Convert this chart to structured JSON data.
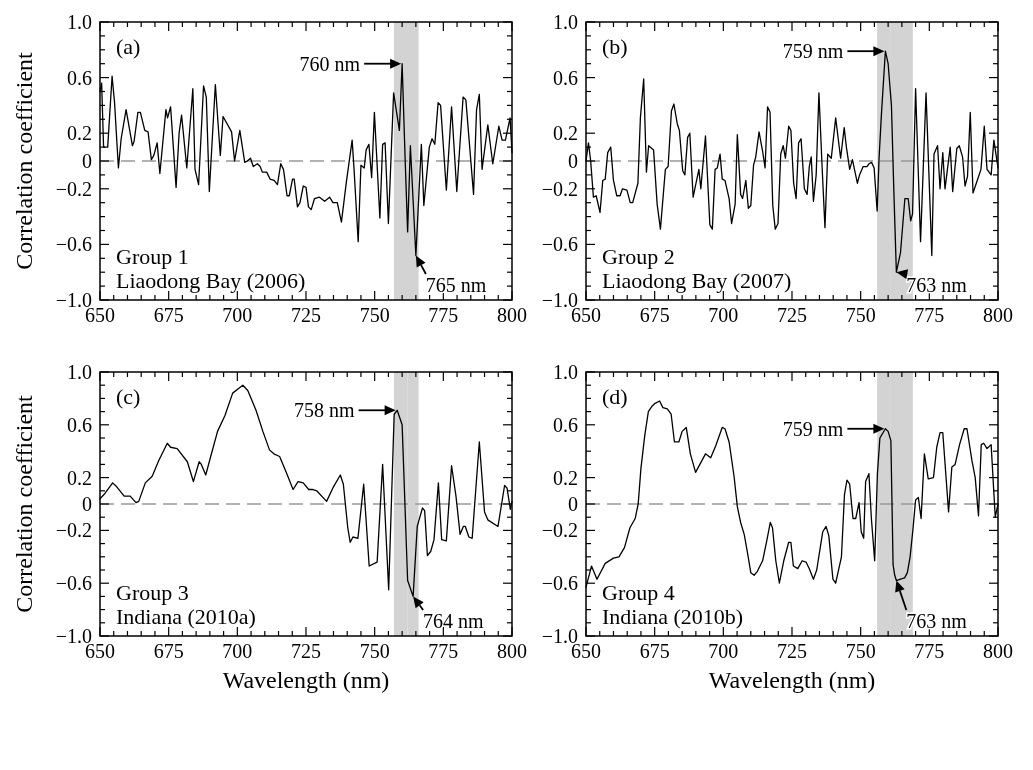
{
  "chart_data": [
    {
      "type": "line",
      "ylabel": "Correlation coefficient",
      "xlim": [
        650,
        800
      ],
      "ylim": [
        -1,
        1
      ],
      "xticks": [
        650,
        {
          "value": 655,
          "label": null
        },
        {
          "value": 660,
          "label": null
        },
        {
          "value": 665,
          "label": null
        },
        {
          "value": 670,
          "label": null
        },
        675,
        {
          "value": 680,
          "label": null
        },
        {
          "value": 685,
          "label": null
        },
        {
          "value": 690,
          "label": null
        },
        {
          "value": 695,
          "label": null
        },
        700,
        {
          "value": 705,
          "label": null
        },
        {
          "value": 710,
          "label": null
        },
        {
          "value": 715,
          "label": null
        },
        {
          "value": 720,
          "label": null
        },
        725,
        {
          "value": 730,
          "label": null
        },
        {
          "value": 735,
          "label": null
        },
        {
          "value": 740,
          "label": null
        },
        {
          "value": 745,
          "label": null
        },
        750,
        {
          "value": 755,
          "label": null
        },
        {
          "value": 760,
          "label": null
        },
        {
          "value": 765,
          "label": null
        },
        {
          "value": 770,
          "label": null
        },
        775,
        {
          "value": 780,
          "label": null
        },
        {
          "value": 785,
          "label": null
        },
        {
          "value": 790,
          "label": null
        },
        {
          "value": 795,
          "label": null
        },
        800
      ],
      "yticks": [
        {
          "value": 1,
          "label": "1.0"
        },
        {
          "value": 0.9,
          "label": null
        },
        {
          "value": 0.8,
          "label": null
        },
        {
          "value": 0.7,
          "label": null
        },
        0.6,
        {
          "value": 0.5,
          "label": null
        },
        {
          "value": 0.4,
          "label": null
        },
        {
          "value": 0.3,
          "label": null
        },
        0.2,
        {
          "value": 0.1,
          "label": null
        },
        0,
        {
          "value": -0.1,
          "label": null
        },
        {
          "value": -0.2,
          "label": "−0.2"
        },
        {
          "value": -0.3,
          "label": null
        },
        {
          "value": -0.4,
          "label": null
        },
        {
          "value": -0.5,
          "label": null
        },
        {
          "value": -0.6,
          "label": "−0.6"
        },
        {
          "value": -0.7,
          "label": null
        },
        {
          "value": -0.8,
          "label": null
        },
        {
          "value": -0.9,
          "label": null
        },
        {
          "value": -1,
          "label": "−1.0"
        }
      ],
      "ref_lines": [
        {
          "axis": "y",
          "value": 0,
          "color": "#999999",
          "line_style": "dashed"
        }
      ],
      "bands": [
        {
          "axis": "x",
          "from": 757,
          "to": 762,
          "color": "#d3d3d3"
        },
        {
          "axis": "x",
          "from": 761,
          "to": 766,
          "color": "#d3d3d3"
        }
      ],
      "annotations": [
        "(a)",
        "Group 1",
        "Liaodong Bay (2006)",
        {
          "text": "760 nm",
          "x": 760,
          "y": 0.7
        },
        {
          "text": "765 nm",
          "x": 765,
          "y": -0.68
        }
      ],
      "series": [
        {
          "color": "#000000",
          "x": [
            650,
            650.6,
            651.3,
            652.8,
            654.4,
            655.3,
            656.7,
            657.7,
            659.5,
            661.8,
            662.4,
            663.8,
            664.7,
            666.3,
            667.5,
            668.7,
            669.6,
            670.8,
            671.8,
            674,
            674.6,
            675.7,
            677.7,
            678.8,
            679.7,
            681.6,
            683.8,
            684.6,
            685.9,
            687.7,
            688.7,
            689.8,
            692,
            693.8,
            694.8,
            697.9,
            699,
            700.9,
            702.7,
            703.6,
            704.8,
            705.8,
            707.3,
            708.3,
            709.1,
            710.7,
            711.9,
            713.4,
            714.6,
            715.8,
            716.8,
            718.1,
            718.9,
            720.1,
            720.7,
            721.9,
            722.8,
            724,
            725,
            725.9,
            726.9,
            728.1,
            729.9,
            731.8,
            733.6,
            734.8,
            736.4,
            737.9,
            739.7,
            741.8,
            742.5,
            744,
            745,
            746.2,
            746.9,
            747.9,
            748.9,
            749.9,
            751.9,
            752.9,
            753.8,
            755,
            756.9,
            759,
            760,
            761.1,
            762,
            763,
            765,
            767,
            767.9,
            769.9,
            770.9,
            771.9,
            773.1,
            774,
            776.1,
            778,
            779.9,
            782.2,
            783.2,
            786,
            787.1,
            788.1,
            789.1,
            791.2,
            793,
            795.2,
            796.4,
            797.6,
            799.3,
            800
          ],
          "values": [
            0.5,
            0.56,
            0.1,
            0.1,
            0.61,
            0.42,
            -0.05,
            0.16,
            0.37,
            0.11,
            0.14,
            0.35,
            0.35,
            0.22,
            0.21,
            0.01,
            0.04,
            0.13,
            -0.09,
            0.37,
            0.31,
            0.39,
            -0.19,
            0.2,
            0.33,
            -0.05,
            0.52,
            -0.06,
            -0.17,
            0.54,
            0.46,
            -0.22,
            0.55,
            0.04,
            0.32,
            0.21,
            0,
            0.22,
            -0.01,
            0,
            0.02,
            -0.04,
            -0.02,
            -0.04,
            -0.08,
            -0.08,
            -0.13,
            -0.14,
            -0.17,
            -0.02,
            -0.06,
            -0.25,
            -0.25,
            -0.13,
            -0.13,
            -0.33,
            -0.3,
            -0.18,
            -0.19,
            -0.33,
            -0.35,
            -0.27,
            -0.26,
            -0.29,
            -0.26,
            -0.3,
            -0.3,
            -0.44,
            -0.15,
            0.15,
            -0.06,
            -0.58,
            -0.03,
            -0.05,
            0.08,
            0.12,
            -0.12,
            0.35,
            -0.41,
            0.12,
            0.13,
            -0.45,
            0.49,
            0.22,
            0.7,
            0.01,
            -0.51,
            0.11,
            -0.68,
            0.12,
            -0.32,
            0.1,
            0.16,
            0.12,
            0.42,
            0.4,
            -0.21,
            0.39,
            -0.22,
            0.46,
            0.44,
            -0.24,
            0.37,
            0.48,
            -0.06,
            0.26,
            -0.02,
            0.25,
            0.15,
            0.15,
            0.31,
            0.06
          ]
        }
      ]
    },
    {
      "type": "line",
      "xlim": [
        650,
        800
      ],
      "ylim": [
        -1,
        1
      ],
      "xticks": [
        650,
        {
          "value": 655,
          "label": null
        },
        {
          "value": 660,
          "label": null
        },
        {
          "value": 665,
          "label": null
        },
        {
          "value": 670,
          "label": null
        },
        675,
        {
          "value": 680,
          "label": null
        },
        {
          "value": 685,
          "label": null
        },
        {
          "value": 690,
          "label": null
        },
        {
          "value": 695,
          "label": null
        },
        700,
        {
          "value": 705,
          "label": null
        },
        {
          "value": 710,
          "label": null
        },
        {
          "value": 715,
          "label": null
        },
        {
          "value": 720,
          "label": null
        },
        725,
        {
          "value": 730,
          "label": null
        },
        {
          "value": 735,
          "label": null
        },
        {
          "value": 740,
          "label": null
        },
        {
          "value": 745,
          "label": null
        },
        750,
        {
          "value": 755,
          "label": null
        },
        {
          "value": 760,
          "label": null
        },
        {
          "value": 765,
          "label": null
        },
        {
          "value": 770,
          "label": null
        },
        775,
        {
          "value": 780,
          "label": null
        },
        {
          "value": 785,
          "label": null
        },
        {
          "value": 790,
          "label": null
        },
        {
          "value": 795,
          "label": null
        },
        800
      ],
      "yticks": [
        {
          "value": 1,
          "label": "1.0"
        },
        {
          "value": 0.9,
          "label": null
        },
        {
          "value": 0.8,
          "label": null
        },
        {
          "value": 0.7,
          "label": null
        },
        0.6,
        {
          "value": 0.5,
          "label": null
        },
        {
          "value": 0.4,
          "label": null
        },
        {
          "value": 0.3,
          "label": null
        },
        0.2,
        {
          "value": 0.1,
          "label": null
        },
        0,
        {
          "value": -0.1,
          "label": null
        },
        {
          "value": -0.2,
          "label": "−0.2"
        },
        {
          "value": -0.3,
          "label": null
        },
        {
          "value": -0.4,
          "label": null
        },
        {
          "value": -0.5,
          "label": null
        },
        {
          "value": -0.6,
          "label": "−0.6"
        },
        {
          "value": -0.7,
          "label": null
        },
        {
          "value": -0.8,
          "label": null
        },
        {
          "value": -0.9,
          "label": null
        },
        {
          "value": -1,
          "label": "−1.0"
        }
      ],
      "ref_lines": [
        {
          "axis": "y",
          "value": 0,
          "color": "#999999",
          "line_style": "dashed"
        }
      ],
      "bands": [
        {
          "axis": "x",
          "from": 756,
          "to": 761,
          "color": "#d3d3d3"
        },
        {
          "axis": "x",
          "from": 761,
          "to": 769,
          "color": "#d3d3d3"
        }
      ],
      "annotations": [
        "(b)",
        "Group 2",
        "Liaodong Bay (2007)",
        {
          "text": "759 nm",
          "x": 759,
          "y": 0.79
        },
        {
          "text": "763 nm",
          "x": 763,
          "y": -0.8
        }
      ],
      "series": [
        {
          "color": "#000000",
          "x": [
            650,
            650.9,
            651.7,
            652.7,
            653.7,
            655.1,
            656.1,
            657,
            657.9,
            659,
            660,
            661.2,
            662.4,
            663.3,
            664.9,
            666.1,
            667,
            668.9,
            669.8,
            671,
            672,
            672.8,
            674.6,
            675.9,
            677.1,
            678.9,
            679.9,
            681.1,
            682,
            683.2,
            684,
            685.2,
            686,
            687,
            687.8,
            689,
            691.1,
            691.8,
            693.5,
            695.1,
            696,
            697,
            697.8,
            698.8,
            699.6,
            700.6,
            702.1,
            703,
            704.3,
            705.1,
            706.3,
            707,
            708.2,
            709.1,
            710,
            711,
            711.8,
            713,
            714.3,
            715.2,
            716.1,
            717,
            718,
            718.9,
            719.9,
            720.9,
            721.8,
            722.6,
            723.8,
            724.6,
            725.6,
            726.5,
            727.4,
            728.3,
            729.5,
            730.5,
            731.3,
            732,
            732.8,
            733.8,
            734.8,
            736,
            737,
            738,
            739.3,
            740.9,
            742.7,
            744,
            744.8,
            746,
            747,
            748.8,
            749.6,
            750.9,
            752.3,
            753,
            754,
            754.9,
            756,
            756.7,
            757.6,
            759,
            760,
            761.2,
            762.1,
            763,
            764.5,
            766.1,
            767.3,
            768.2,
            768.9,
            770,
            771.8,
            773.8,
            775.9,
            776.7,
            778,
            778.9,
            779.9,
            780.7,
            782.6,
            783.5,
            785,
            785.9,
            787.1,
            788,
            788.9,
            789.9,
            790.9,
            792.1,
            793.8,
            795,
            796,
            797.5,
            798.5,
            800
          ],
          "values": [
            0,
            0.13,
            0,
            -0.26,
            -0.25,
            -0.37,
            -0.14,
            -0.13,
            0.06,
            0.1,
            -0.14,
            -0.25,
            -0.25,
            -0.2,
            -0.21,
            -0.3,
            -0.3,
            -0.16,
            0.31,
            0.59,
            -0.08,
            0.11,
            0.08,
            -0.31,
            -0.49,
            -0.06,
            -0.04,
            0.36,
            0.41,
            0.27,
            0.22,
            -0.07,
            -0.1,
            0.17,
            0.2,
            -0.26,
            -0.06,
            -0.2,
            0.18,
            -0.46,
            -0.49,
            -0.06,
            -0.05,
            0.05,
            -0.13,
            -0.14,
            -0.27,
            -0.45,
            -0.31,
            0.19,
            -0.24,
            -0.27,
            -0.14,
            -0.34,
            -0.32,
            -0.03,
            0.03,
            0.21,
            0.07,
            -0.05,
            0.39,
            0.35,
            -0.32,
            -0.49,
            -0.45,
            0.05,
            0.11,
            0.02,
            0.25,
            0.22,
            -0.16,
            -0.27,
            0.13,
            0.16,
            -0.2,
            -0.24,
            -0.04,
            0.03,
            -0.29,
            -0.1,
            0.49,
            -0.06,
            -0.48,
            0.05,
            0.02,
            0.31,
            0.02,
            0.24,
            0.1,
            -0.06,
            0.01,
            -0.16,
            -0.1,
            -0.04,
            -0.04,
            -0.02,
            -0.01,
            -0.05,
            -0.36,
            0.02,
            0.35,
            0.79,
            0.7,
            0.4,
            -0.23,
            -0.8,
            -0.66,
            -0.27,
            -0.27,
            -0.43,
            -0.38,
            0.52,
            -0.58,
            0.49,
            -0.68,
            0.05,
            0.11,
            -0.2,
            0.06,
            -0.2,
            0.1,
            -0.22,
            0.09,
            0.11,
            0.03,
            -0.18,
            -0.11,
            0.35,
            -0.23,
            -0.16,
            -0.06,
            0.25,
            -0.06,
            -0.1,
            0.15,
            -0.05
          ]
        }
      ]
    },
    {
      "type": "line",
      "xlabel": "Wavelength (nm)",
      "ylabel": "Correlation coefficient",
      "xlim": [
        650,
        800
      ],
      "ylim": [
        -1,
        1
      ],
      "xticks": [
        650,
        {
          "value": 655,
          "label": null
        },
        {
          "value": 660,
          "label": null
        },
        {
          "value": 665,
          "label": null
        },
        {
          "value": 670,
          "label": null
        },
        675,
        {
          "value": 680,
          "label": null
        },
        {
          "value": 685,
          "label": null
        },
        {
          "value": 690,
          "label": null
        },
        {
          "value": 695,
          "label": null
        },
        700,
        {
          "value": 705,
          "label": null
        },
        {
          "value": 710,
          "label": null
        },
        {
          "value": 715,
          "label": null
        },
        {
          "value": 720,
          "label": null
        },
        725,
        {
          "value": 730,
          "label": null
        },
        {
          "value": 735,
          "label": null
        },
        {
          "value": 740,
          "label": null
        },
        {
          "value": 745,
          "label": null
        },
        750,
        {
          "value": 755,
          "label": null
        },
        {
          "value": 760,
          "label": null
        },
        {
          "value": 765,
          "label": null
        },
        {
          "value": 770,
          "label": null
        },
        775,
        {
          "value": 780,
          "label": null
        },
        {
          "value": 785,
          "label": null
        },
        {
          "value": 790,
          "label": null
        },
        {
          "value": 795,
          "label": null
        },
        800
      ],
      "yticks": [
        {
          "value": 1,
          "label": "1.0"
        },
        {
          "value": 0.9,
          "label": null
        },
        {
          "value": 0.8,
          "label": null
        },
        {
          "value": 0.7,
          "label": null
        },
        0.6,
        {
          "value": 0.5,
          "label": null
        },
        {
          "value": 0.4,
          "label": null
        },
        {
          "value": 0.3,
          "label": null
        },
        0.2,
        {
          "value": 0.1,
          "label": null
        },
        0,
        {
          "value": -0.1,
          "label": null
        },
        {
          "value": -0.2,
          "label": "−0.2"
        },
        {
          "value": -0.3,
          "label": null
        },
        {
          "value": -0.4,
          "label": null
        },
        {
          "value": -0.5,
          "label": null
        },
        {
          "value": -0.6,
          "label": "−0.6"
        },
        {
          "value": -0.7,
          "label": null
        },
        {
          "value": -0.8,
          "label": null
        },
        {
          "value": -0.9,
          "label": null
        },
        {
          "value": -1,
          "label": "−1.0"
        }
      ],
      "ref_lines": [
        {
          "axis": "y",
          "value": 0,
          "color": "#999999",
          "line_style": "dashed"
        }
      ],
      "bands": [
        {
          "axis": "x",
          "from": 757,
          "to": 762,
          "color": "#d3d3d3"
        },
        {
          "axis": "x",
          "from": 762,
          "to": 766,
          "color": "#d3d3d3"
        }
      ],
      "annotations": [
        "(c)",
        "Group 3",
        "Indiana (2010a)",
        {
          "text": "758 nm",
          "x": 758,
          "y": 0.71
        },
        {
          "text": "764 nm",
          "x": 764,
          "y": -0.7
        }
      ],
      "series": [
        {
          "color": "#000000",
          "x": [
            650,
            651.8,
            654.6,
            656.1,
            658.8,
            661,
            663.1,
            664.1,
            666.5,
            669,
            671.4,
            674.5,
            675.7,
            678.1,
            681.8,
            684,
            686.1,
            686.9,
            688.5,
            690.3,
            692.8,
            695.5,
            698.3,
            700.1,
            702,
            703.8,
            706.8,
            709.3,
            711.7,
            713.3,
            715.4,
            717.8,
            720.3,
            722.1,
            724,
            726,
            727.3,
            728.9,
            732.5,
            735,
            737.5,
            738.6,
            740.2,
            741.1,
            742.1,
            743.9,
            746,
            748,
            750.9,
            752.9,
            755.1,
            757.1,
            758.2,
            760,
            762,
            764,
            765.5,
            767.4,
            768.2,
            769.2,
            770.4,
            771.6,
            773.2,
            774.4,
            776.1,
            778,
            779.6,
            781.1,
            782.3,
            783,
            784.3,
            785.5,
            788.1,
            790,
            791.2,
            794.9,
            797.3,
            798.2,
            799.4,
            800
          ],
          "values": [
            0.04,
            0.08,
            0.16,
            0.13,
            0.06,
            0.06,
            0.01,
            0.02,
            0.16,
            0.21,
            0.33,
            0.46,
            0.43,
            0.42,
            0.32,
            0.17,
            0.32,
            0.3,
            0.22,
            0.36,
            0.55,
            0.67,
            0.84,
            0.87,
            0.9,
            0.86,
            0.71,
            0.55,
            0.41,
            0.38,
            0.36,
            0.24,
            0.11,
            0.17,
            0.16,
            0.11,
            0.11,
            0.1,
            0.02,
            0.13,
            0.22,
            0.15,
            -0.18,
            -0.29,
            -0.25,
            -0.26,
            0.15,
            -0.47,
            -0.44,
            0.3,
            -0.65,
            0.68,
            0.71,
            0.6,
            -0.58,
            -0.7,
            -0.17,
            -0.03,
            -0.05,
            -0.39,
            -0.36,
            -0.27,
            0.16,
            -0.27,
            -0.28,
            0.29,
            0.06,
            -0.23,
            -0.17,
            -0.17,
            -0.25,
            -0.26,
            0.47,
            -0.06,
            -0.12,
            -0.17,
            0.14,
            0.12,
            -0.04,
            0.02
          ]
        }
      ]
    },
    {
      "type": "line",
      "xlabel": "Wavelength (nm)",
      "xlim": [
        650,
        800
      ],
      "ylim": [
        -1,
        1
      ],
      "xticks": [
        650,
        {
          "value": 655,
          "label": null
        },
        {
          "value": 660,
          "label": null
        },
        {
          "value": 665,
          "label": null
        },
        {
          "value": 670,
          "label": null
        },
        675,
        {
          "value": 680,
          "label": null
        },
        {
          "value": 685,
          "label": null
        },
        {
          "value": 690,
          "label": null
        },
        {
          "value": 695,
          "label": null
        },
        700,
        {
          "value": 705,
          "label": null
        },
        {
          "value": 710,
          "label": null
        },
        {
          "value": 715,
          "label": null
        },
        {
          "value": 720,
          "label": null
        },
        725,
        {
          "value": 730,
          "label": null
        },
        {
          "value": 735,
          "label": null
        },
        {
          "value": 740,
          "label": null
        },
        {
          "value": 745,
          "label": null
        },
        750,
        {
          "value": 755,
          "label": null
        },
        {
          "value": 760,
          "label": null
        },
        {
          "value": 765,
          "label": null
        },
        {
          "value": 770,
          "label": null
        },
        775,
        {
          "value": 780,
          "label": null
        },
        {
          "value": 785,
          "label": null
        },
        {
          "value": 790,
          "label": null
        },
        {
          "value": 795,
          "label": null
        },
        800
      ],
      "yticks": [
        {
          "value": 1,
          "label": "1.0"
        },
        {
          "value": 0.9,
          "label": null
        },
        {
          "value": 0.8,
          "label": null
        },
        {
          "value": 0.7,
          "label": null
        },
        0.6,
        {
          "value": 0.5,
          "label": null
        },
        {
          "value": 0.4,
          "label": null
        },
        {
          "value": 0.3,
          "label": null
        },
        0.2,
        {
          "value": 0.1,
          "label": null
        },
        0,
        {
          "value": -0.1,
          "label": null
        },
        {
          "value": -0.2,
          "label": "−0.2"
        },
        {
          "value": -0.3,
          "label": null
        },
        {
          "value": -0.4,
          "label": null
        },
        {
          "value": -0.5,
          "label": null
        },
        {
          "value": -0.6,
          "label": "−0.6"
        },
        {
          "value": -0.7,
          "label": null
        },
        {
          "value": -0.8,
          "label": null
        },
        {
          "value": -0.9,
          "label": null
        },
        {
          "value": -1,
          "label": "−1.0"
        }
      ],
      "ref_lines": [
        {
          "axis": "y",
          "value": 0,
          "color": "#999999",
          "line_style": "dashed"
        }
      ],
      "bands": [
        {
          "axis": "x",
          "from": 756,
          "to": 761,
          "color": "#d3d3d3"
        },
        {
          "axis": "x",
          "from": 761,
          "to": 769,
          "color": "#d3d3d3"
        }
      ],
      "annotations": [
        "(d)",
        "Group 4",
        "Indiana (2010b)",
        {
          "text": "759 nm",
          "x": 759,
          "y": 0.57
        },
        {
          "text": "763 nm",
          "x": 763,
          "y": -0.58
        }
      ],
      "series": [
        {
          "color": "#000000",
          "x": [
            650,
            652,
            654,
            657,
            660,
            662,
            664,
            666,
            667.9,
            669,
            670,
            671.4,
            672.7,
            674,
            675,
            676.8,
            678,
            679.6,
            681,
            682.2,
            683.8,
            685,
            686.5,
            688,
            689.9,
            691.7,
            693.5,
            695.4,
            697.2,
            699.6,
            700.6,
            702.1,
            703.9,
            705.1,
            706.3,
            707.6,
            708.8,
            710,
            711.2,
            712.4,
            714.3,
            715.7,
            717.1,
            717.9,
            719.1,
            720.4,
            722,
            723.8,
            724.6,
            725.5,
            727.1,
            728.7,
            730.1,
            731.3,
            732.8,
            734,
            736.2,
            737.4,
            738.4,
            739.9,
            740.9,
            743,
            744.1,
            745,
            746,
            747.2,
            748.2,
            749.4,
            750.2,
            751.1,
            751.8,
            753,
            753.9,
            755.1,
            756.1,
            757,
            759,
            760,
            761,
            761.8,
            762.4,
            763,
            764.5,
            766,
            767,
            768,
            769,
            770,
            771,
            772,
            773.2,
            774.6,
            776.5,
            777.7,
            778.9,
            779.9,
            782,
            783.2,
            784.4,
            786,
            787.7,
            788.7,
            790.5,
            791.7,
            792.9,
            793.9,
            794.8,
            796,
            797.5,
            799,
            800
          ],
          "values": [
            -0.63,
            -0.47,
            -0.57,
            -0.45,
            -0.41,
            -0.4,
            -0.33,
            -0.18,
            -0.11,
            0,
            0.27,
            0.52,
            0.7,
            0.74,
            0.76,
            0.78,
            0.73,
            0.72,
            0.68,
            0.47,
            0.47,
            0.55,
            0.58,
            0.38,
            0.24,
            0.31,
            0.38,
            0.35,
            0.44,
            0.58,
            0.57,
            0.47,
            0.21,
            -0.02,
            -0.14,
            -0.23,
            -0.37,
            -0.52,
            -0.54,
            -0.51,
            -0.43,
            -0.29,
            -0.14,
            -0.18,
            -0.43,
            -0.6,
            -0.43,
            -0.29,
            -0.29,
            -0.47,
            -0.49,
            -0.43,
            -0.44,
            -0.49,
            -0.57,
            -0.5,
            -0.21,
            -0.17,
            -0.24,
            -0.57,
            -0.6,
            -0.4,
            0.07,
            0.18,
            0.15,
            -0.11,
            -0.11,
            0.01,
            -0.21,
            -0.26,
            0.17,
            0.23,
            -0.11,
            -0.43,
            0.23,
            0.5,
            0.57,
            0.55,
            0.48,
            -0.46,
            -0.54,
            -0.58,
            -0.57,
            -0.56,
            -0.52,
            -0.4,
            -0.2,
            0.03,
            0.05,
            -0.11,
            0.38,
            0.19,
            0.2,
            0.43,
            0.54,
            0.54,
            -0.06,
            0.28,
            0.3,
            0.45,
            0.57,
            0.57,
            0.33,
            0.2,
            -0.09,
            0.45,
            0.46,
            0.42,
            0.45,
            -0.1,
            0
          ]
        }
      ]
    }
  ]
}
